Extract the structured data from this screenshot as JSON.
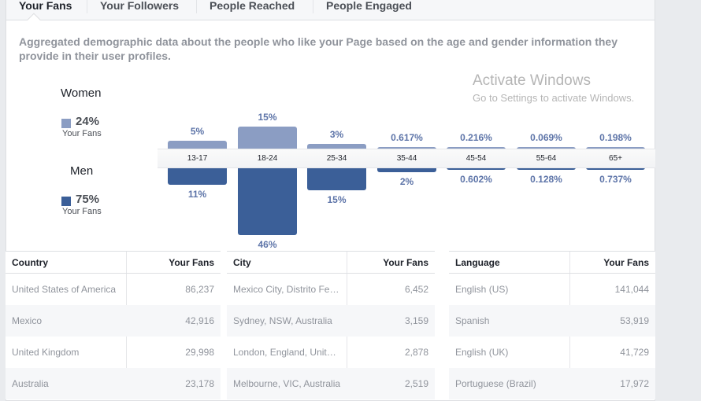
{
  "tabs": [
    {
      "label": "Your Fans",
      "active": true
    },
    {
      "label": "Your Followers"
    },
    {
      "label": "People Reached"
    },
    {
      "label": "People Engaged"
    }
  ],
  "description": "Aggregated demographic data about the people who like your Page based on the age and gender information they provide in their user profiles.",
  "legend": {
    "women": {
      "title": "Women",
      "pct": "24%",
      "sub": "Your Fans",
      "color": "#8b9dc3"
    },
    "men": {
      "title": "Men",
      "pct": "75%",
      "sub": "Your Fans",
      "color": "#3b5f98"
    }
  },
  "chart_data": {
    "type": "bar",
    "categories": [
      "13-17",
      "18-24",
      "25-34",
      "35-44",
      "45-54",
      "55-64",
      "65+"
    ],
    "series": [
      {
        "name": "Women",
        "values": [
          5,
          15,
          3,
          0.617,
          0.216,
          0.069,
          0.198
        ],
        "labels": [
          "5%",
          "15%",
          "3%",
          "0.617%",
          "0.216%",
          "0.069%",
          "0.198%"
        ]
      },
      {
        "name": "Men",
        "values": [
          11,
          46,
          15,
          2,
          0.602,
          0.128,
          0.737
        ],
        "labels": [
          "11%",
          "46%",
          "15%",
          "2%",
          "0.602%",
          "0.128%",
          "0.737%"
        ]
      }
    ]
  },
  "tables": [
    {
      "col1": "Country",
      "col2": "Your Fans",
      "rows": [
        [
          "United States of America",
          "86,237"
        ],
        [
          "Mexico",
          "42,916"
        ],
        [
          "United Kingdom",
          "29,998"
        ],
        [
          "Australia",
          "23,178"
        ]
      ]
    },
    {
      "col1": "City",
      "col2": "Your Fans",
      "rows": [
        [
          "Mexico City, Distrito Fe…",
          "6,452"
        ],
        [
          "Sydney, NSW, Australia",
          "3,159"
        ],
        [
          "London, England, Unit…",
          "2,878"
        ],
        [
          "Melbourne, VIC, Australia",
          "2,519"
        ]
      ]
    },
    {
      "col1": "Language",
      "col2": "Your Fans",
      "rows": [
        [
          "English (US)",
          "141,044"
        ],
        [
          "Spanish",
          "53,919"
        ],
        [
          "English (UK)",
          "41,729"
        ],
        [
          "Portuguese (Brazil)",
          "17,972"
        ]
      ]
    }
  ],
  "watermark": {
    "line1": "Activate Windows",
    "line2": "Go to Settings to activate Windows."
  }
}
